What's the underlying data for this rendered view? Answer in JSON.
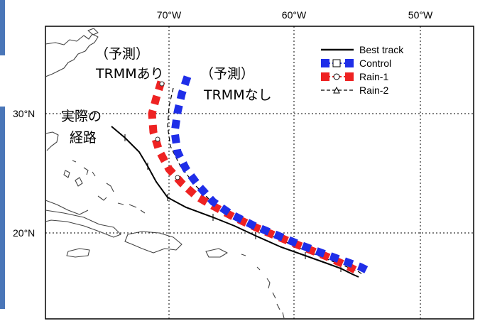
{
  "map": {
    "lon_ticks": [
      "70°W",
      "60°W",
      "50°W"
    ],
    "lat_ticks": [
      "30°N",
      "20°N"
    ],
    "legend": [
      {
        "label": "Best track",
        "style": "solid-black",
        "color": "#000000"
      },
      {
        "label": "Control",
        "style": "dashed-square",
        "color": "#1f2ee8"
      },
      {
        "label": "Rain-1",
        "style": "dashed-circle",
        "color": "#ee2222"
      },
      {
        "label": "Rain-2",
        "style": "dashed-triangle",
        "color": "#000000"
      }
    ],
    "annotations": {
      "forecast_with_trmm": {
        "line1": "（予測）",
        "line2": "TRMMあり"
      },
      "forecast_without_trmm": {
        "line1": "（予測）",
        "line2": "TRMMなし"
      },
      "actual_path": {
        "line1": "実際の",
        "line2": "経路"
      }
    }
  },
  "colors": {
    "control": "#1f2ee8",
    "rain1": "#ee2222",
    "best_track": "#000000",
    "accent_bar": "#4a76b8"
  }
}
